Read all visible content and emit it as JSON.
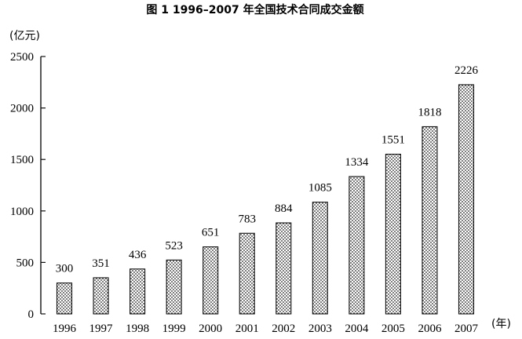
{
  "chart_data": {
    "type": "bar",
    "title": "图 1  1996–2007 年全国技术合同成交金额",
    "ylabel": "(亿元)",
    "xlabel": "(年)",
    "categories": [
      "1996",
      "1997",
      "1998",
      "1999",
      "2000",
      "2001",
      "2002",
      "2003",
      "2004",
      "2005",
      "2006",
      "2007"
    ],
    "values": [
      300,
      351,
      436,
      523,
      651,
      783,
      884,
      1085,
      1334,
      1551,
      1818,
      2226
    ],
    "ylim": [
      0,
      2500
    ],
    "yticks": [
      0,
      500,
      1000,
      1500,
      2000,
      2500
    ],
    "grid": false,
    "bar_fill": "dotted pattern",
    "colors": {
      "bar_stroke": "#111111",
      "dot": "#222222",
      "axis": "#111111"
    }
  }
}
